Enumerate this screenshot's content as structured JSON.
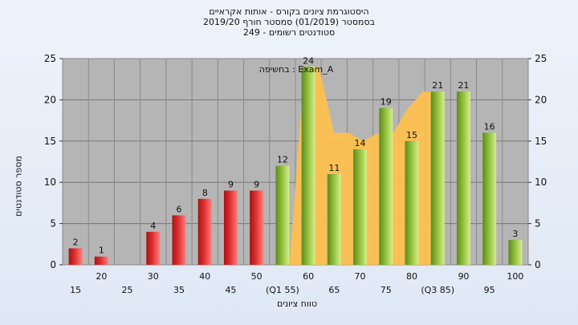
{
  "title_lines": [
    "היסטוגרמת ציונים בקורס - אותות אקראיים",
    "בסמסטר  (01/2019)  סמסטר חורף 2019/20",
    "249 - סטודנטים רשומים"
  ],
  "annotation": "בחשיפה : Exam_A",
  "colors": {
    "fail_bar": "#e03030",
    "pass_bar": "#8fbe3a",
    "area": "#ffc14d",
    "plot_bg": "#b5b5b5"
  },
  "chart_data": {
    "type": "bar",
    "title": "",
    "xlabel": "טווח ציונים",
    "ylabel": "מספר סטודנטים",
    "ylim": [
      0,
      25
    ],
    "yticks": [
      0,
      5,
      10,
      15,
      20,
      25
    ],
    "grid": true,
    "categories": [
      "15",
      "20",
      "25",
      "30",
      "35",
      "40",
      "45",
      "50",
      "55",
      "60",
      "65",
      "70",
      "75",
      "80",
      "85",
      "90",
      "95",
      "100"
    ],
    "category_labels": [
      "15",
      "20",
      "25",
      "30",
      "35",
      "40",
      "45",
      "50",
      "(Q1 55)",
      "60",
      "65",
      "70",
      "75",
      "80",
      "(Q3 85)",
      "90",
      "95",
      "100"
    ],
    "values": [
      2,
      1,
      0,
      4,
      6,
      8,
      9,
      9,
      12,
      24,
      11,
      14,
      19,
      15,
      21,
      21,
      16,
      3
    ],
    "value_labels": [
      "2",
      "1",
      "",
      "4",
      "6",
      "8",
      "9",
      "9",
      "12",
      "24",
      "11",
      "14",
      "19",
      "15",
      "21",
      "21",
      "16",
      "3"
    ],
    "bar_groups": [
      "fail",
      "fail",
      "fail",
      "fail",
      "fail",
      "fail",
      "fail",
      "fail",
      "pass",
      "pass",
      "pass",
      "pass",
      "pass",
      "pass",
      "pass",
      "pass",
      "pass",
      "pass"
    ],
    "interquartile_area": {
      "from_category": "55",
      "to_category": "85",
      "values": [
        0,
        0,
        24,
        24,
        16,
        16,
        15,
        16,
        16,
        19,
        21,
        21
      ]
    }
  }
}
